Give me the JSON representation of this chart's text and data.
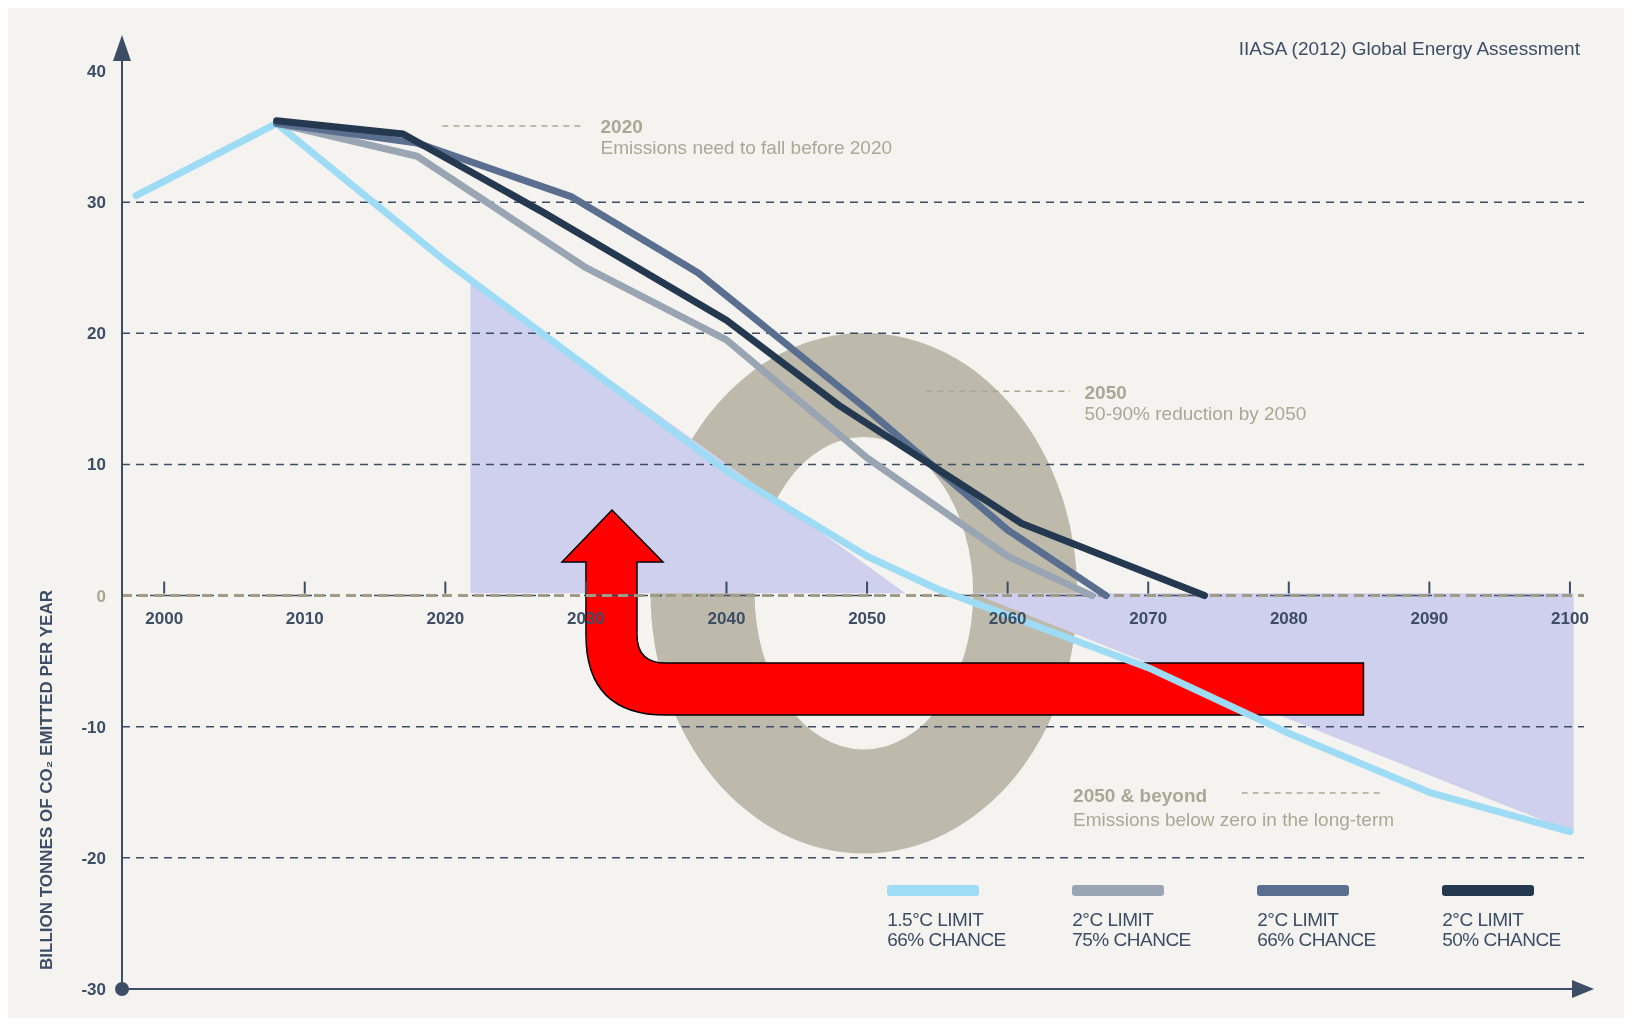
{
  "chart_data": {
    "type": "line",
    "ylabel": "BILLION TONNES OF CO₂ EMITTED PER YEAR",
    "xlim": [
      1997,
      2101
    ],
    "xticks": [
      2000,
      2010,
      2020,
      2030,
      2040,
      2050,
      2060,
      2070,
      2080,
      2090,
      2100
    ],
    "ylim": [
      -30,
      40
    ],
    "yticks": [
      -30,
      -20,
      -10,
      0,
      10,
      20,
      30,
      40
    ],
    "grid": "y",
    "legend": "bottom right",
    "marker": "none",
    "line_style": "solid",
    "ref_lines": [
      {
        "axis": "y",
        "value": 0,
        "color": "#a09c88",
        "line_style": "dashed"
      }
    ],
    "annotations": [
      "IIASA (2012) Global Energy Assessment",
      "2020",
      "Emissions need to fall before 2020",
      "2050",
      "50-90% reduction by 2050",
      "2050 & beyond",
      "Emissions below zero in the long-term"
    ],
    "series": [
      {
        "name": "1.5°C LIMIT\n66% CHANCE",
        "color": "#9edcf5",
        "x": [
          1998,
          2008,
          2020,
          2030,
          2040,
          2050,
          2055,
          2060,
          2070,
          2080,
          2090,
          2100
        ],
        "values": [
          30.5,
          36,
          25.5,
          17.5,
          9.5,
          3,
          0.5,
          -1.5,
          -5.5,
          -10.5,
          -15,
          -18
        ]
      },
      {
        "name": "2°C LIMIT\n75% CHANCE",
        "color": "#9aa5b3",
        "x": [
          2008,
          2018,
          2030,
          2040,
          2050,
          2060,
          2066
        ],
        "values": [
          36,
          33.5,
          25,
          19.5,
          10.5,
          3,
          0
        ]
      },
      {
        "name": "2°C LIMIT\n66% CHANCE",
        "color": "#5a6e90",
        "x": [
          2008,
          2018,
          2029,
          2038,
          2050,
          2060,
          2067
        ],
        "values": [
          36,
          34.5,
          30.4,
          24.6,
          14.2,
          5,
          0
        ]
      },
      {
        "name": "2°C LIMIT\n50% CHANCE",
        "color": "#243850",
        "x": [
          2008,
          2017,
          2027,
          2040,
          2048,
          2061,
          2074
        ],
        "values": [
          36.2,
          35.2,
          29.2,
          21,
          14.5,
          5.5,
          0
        ]
      }
    ]
  }
}
